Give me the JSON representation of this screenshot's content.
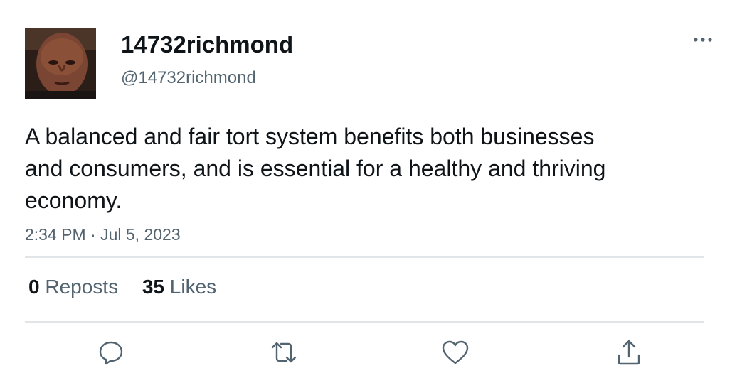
{
  "author": {
    "display_name": "14732richmond",
    "handle": "@14732richmond",
    "avatar_icon": "profile-photo"
  },
  "tweet": {
    "text": "A balanced and fair tort system benefits both businesses and consumers, and is essential for a healthy and thriving economy.",
    "timestamp": "2:34 PM · Jul 5, 2023"
  },
  "stats": {
    "reposts_count": "0",
    "reposts_label": "Reposts",
    "likes_count": "35",
    "likes_label": "Likes"
  },
  "actions": {
    "icons": [
      "reply-icon",
      "repost-icon",
      "like-icon",
      "share-icon"
    ]
  },
  "colors": {
    "text": "#0f1419",
    "secondary": "#536471",
    "divider": "#e1e5e8"
  }
}
